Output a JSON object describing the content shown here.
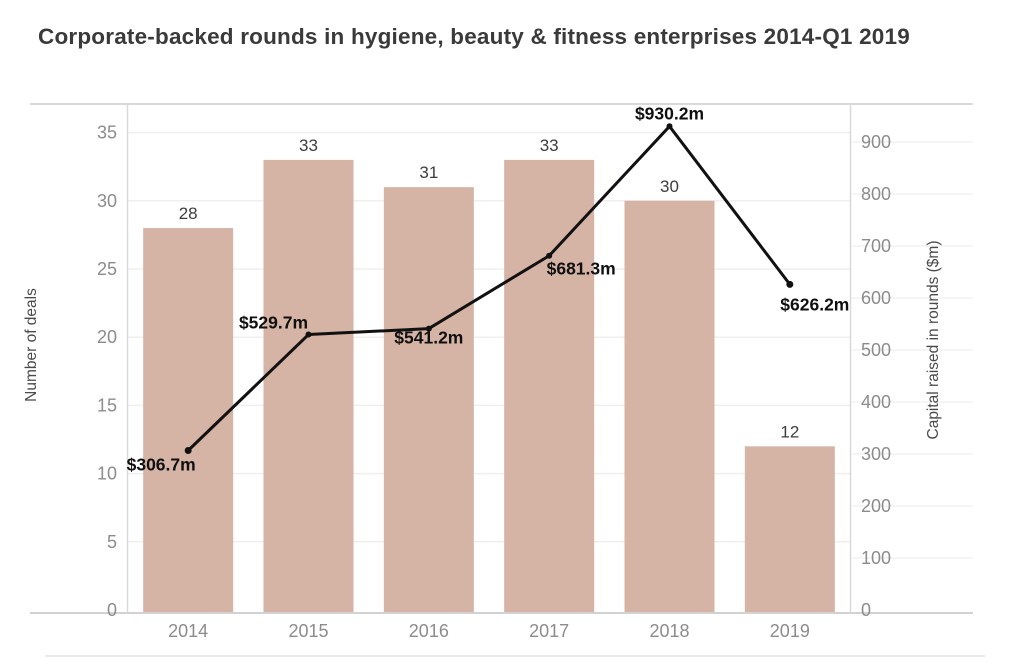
{
  "page": {
    "title": "Corporate-backed rounds in hygiene, beauty & fitness enterprises 2014-Q1 2019"
  },
  "chart_data": {
    "type": "combo",
    "title": "Corporate-backed rounds in hygiene, beauty & fitness enterprises 2014-Q1 2019",
    "categories": [
      "2014",
      "2015",
      "2016",
      "2017",
      "2018",
      "2019"
    ],
    "series": [
      {
        "name": "Number of deals",
        "type": "bar",
        "axis": "left",
        "values": [
          28,
          33,
          31,
          33,
          30,
          12
        ],
        "value_labels": [
          "28",
          "33",
          "31",
          "33",
          "30",
          "12"
        ],
        "color": "#d5b3a5"
      },
      {
        "name": "Capital raised in rounds ($m)",
        "type": "line",
        "axis": "right",
        "values": [
          306.7,
          529.7,
          541.2,
          681.3,
          930.2,
          626.2
        ],
        "value_labels": [
          "$306.7m",
          "$529.7m",
          "$541.2m",
          "$681.3m",
          "$930.2m",
          "$626.2m"
        ],
        "label_positions": [
          "below-left",
          "above-left",
          "below",
          "right-below",
          "above",
          "below-right"
        ],
        "color": "#111111"
      }
    ],
    "left_axis": {
      "title": "Number of deals",
      "ticks": [
        0,
        5,
        10,
        15,
        20,
        25,
        30,
        35
      ],
      "range": [
        0,
        37
      ]
    },
    "right_axis": {
      "title": "Capital raised in rounds ($m)",
      "ticks": [
        0,
        100,
        200,
        300,
        400,
        500,
        600,
        700,
        800,
        900
      ],
      "range": [
        0,
        973
      ]
    },
    "grid": true,
    "legend": "none",
    "palette": {
      "tick_label": "#8c8c8c",
      "bar_value_label": "#3d3d3d",
      "line_value_label": "#101010",
      "axis_line": "#d9d9d9",
      "baseline": "#d2d2d2",
      "grid_line": "#f1eeee",
      "title_text": "#3a3a3a"
    }
  }
}
